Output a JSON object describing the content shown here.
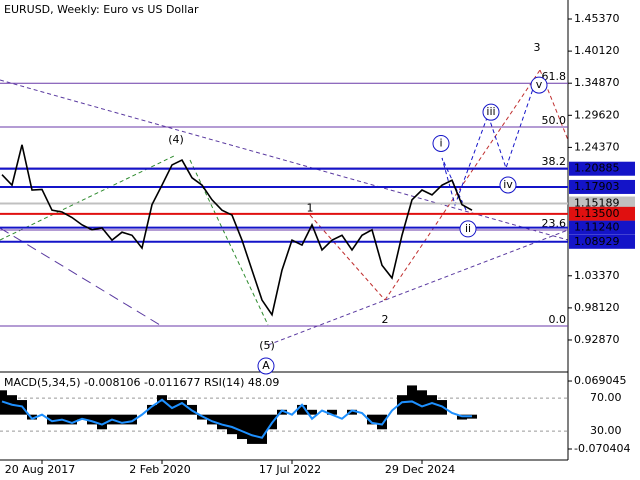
{
  "chart_data": {
    "type": "line",
    "title": "EURUSD, Weekly:  Euro vs US Dollar",
    "categories": [
      null,
      null,
      null,
      null,
      "20 Aug 2017",
      null,
      null,
      null,
      null,
      null,
      null,
      null,
      null,
      null,
      null,
      null,
      "2 Feb 2020",
      null,
      null,
      null,
      null,
      null,
      null,
      null,
      null,
      null,
      null,
      null,
      null,
      "17 Jul 2022",
      null,
      null,
      null,
      null,
      null,
      null,
      null,
      null,
      null,
      null,
      null,
      null,
      "29 Dec 2024",
      null,
      null,
      null,
      null,
      null
    ],
    "values": [
      1.199,
      1.182,
      1.248,
      1.174,
      1.175,
      1.141,
      1.138,
      1.129,
      1.117,
      1.109,
      1.112,
      1.092,
      1.105,
      1.1,
      1.079,
      1.15,
      1.182,
      1.215,
      1.223,
      1.194,
      1.182,
      1.158,
      1.141,
      1.133,
      1.092,
      1.043,
      0.994,
      0.97,
      1.043,
      1.092,
      1.084,
      1.117,
      1.076,
      1.092,
      1.1,
      1.076,
      1.1,
      1.109,
      1.051,
      1.03,
      1.1,
      1.158,
      1.174,
      1.166,
      1.182,
      1.19,
      1.15,
      1.141
    ],
    "color": "#000000",
    "ylim": [
      0.8796,
      1.4848
    ],
    "yticks": [
      {
        "value": 1.4537,
        "label": "1.45370"
      },
      {
        "value": 1.4012,
        "label": "1.40120"
      },
      {
        "value": 1.3487,
        "label": "1.34870"
      },
      {
        "value": 1.2962,
        "label": "1.29620"
      },
      {
        "value": 1.2437,
        "label": "1.24370"
      },
      {
        "value": 1.0337,
        "label": "1.03370"
      },
      {
        "value": 0.9812,
        "label": "0.98120"
      },
      {
        "value": 0.9287,
        "label": "0.92870"
      }
    ],
    "levels": [
      {
        "value": 1.20885,
        "label": "1.20885",
        "color": "#1414c8"
      },
      {
        "value": 1.17903,
        "label": "1.17903",
        "color": "#1414c8"
      },
      {
        "value": 1.15189,
        "label": "1.15189",
        "color": "#c0c0c0"
      },
      {
        "value": 1.135,
        "label": "1.13500",
        "color": "#e01010"
      },
      {
        "value": 1.1124,
        "label": "1.11240",
        "color": "#1414c8"
      },
      {
        "value": 1.08929,
        "label": "1.08929",
        "color": "#1414c8"
      }
    ],
    "fib": [
      {
        "label": "61.8",
        "price": 1.3487
      },
      {
        "label": "50.0",
        "price": 1.277
      },
      {
        "label": "38.2",
        "price": 1.21
      },
      {
        "label": "23.6",
        "price": 1.1086
      },
      {
        "label": "0.0",
        "price": 0.9516
      }
    ],
    "waves": [
      {
        "label": "(4)",
        "price": 1.2555,
        "color": "#2e8b2e"
      },
      {
        "label": "(5)",
        "price": 0.9189,
        "color": "#2e8b2e"
      },
      {
        "label": "A",
        "price": 0.8862,
        "color": "#1414c8"
      },
      {
        "label": "1",
        "price": 1.1435,
        "color": "#8b2a2a"
      },
      {
        "label": "2",
        "price": 0.9615,
        "color": "#8b2a2a"
      },
      {
        "label": "3",
        "price": 1.4063,
        "color": "#8b2a2a"
      },
      {
        "label": "i",
        "price": 1.2501,
        "color": "#1414c8"
      },
      {
        "label": "ii",
        "price": 1.1104,
        "color": "#1414c8"
      },
      {
        "label": "iii",
        "price": 1.3013,
        "color": "#1414c8"
      },
      {
        "label": "iv",
        "price": 1.1822,
        "color": "#1414c8"
      },
      {
        "label": "v",
        "price": 1.3456,
        "color": "#1414c8"
      }
    ],
    "indicator": {
      "title": "MACD(5,34,5) -0.008106 -0.011677 RSI(14) 48.09",
      "macd_ylim": [
        -0.093,
        0.0855
      ],
      "macd_ticks": [
        {
          "value": 0.069045,
          "label": "0.069045"
        },
        {
          "value": -0.070404,
          "label": "-0.070404"
        }
      ],
      "macd": [
        0.05,
        0.04,
        0.03,
        -0.01,
        0.0,
        -0.02,
        -0.02,
        -0.02,
        -0.01,
        -0.02,
        -0.03,
        -0.02,
        -0.02,
        -0.02,
        0.0,
        0.02,
        0.04,
        0.03,
        0.03,
        0.02,
        -0.01,
        -0.02,
        -0.03,
        -0.04,
        -0.05,
        -0.06,
        -0.06,
        -0.03,
        0.01,
        0.0,
        0.02,
        0.01,
        0.0,
        0.01,
        0.0,
        0.01,
        0.0,
        -0.02,
        -0.03,
        0.0,
        0.04,
        0.06,
        0.05,
        0.04,
        0.03,
        0.0,
        -0.01,
        -0.008106
      ],
      "rsi_ylim": [
        -5,
        100.5
      ],
      "rsi_ticks": [
        {
          "value": 70,
          "label": "70.00"
        },
        {
          "value": 30,
          "label": "30.00"
        }
      ],
      "rsi": [
        66,
        62,
        60,
        45,
        50,
        42,
        44,
        40,
        45,
        42,
        38,
        44,
        40,
        42,
        50,
        60,
        68,
        58,
        64,
        55,
        48,
        42,
        38,
        35,
        30,
        25,
        22,
        40,
        55,
        50,
        62,
        45,
        55,
        50,
        45,
        55,
        52,
        40,
        38,
        55,
        65,
        66,
        60,
        64,
        60,
        52,
        48,
        48.09
      ],
      "rsi_color": "#1e90ff"
    }
  }
}
